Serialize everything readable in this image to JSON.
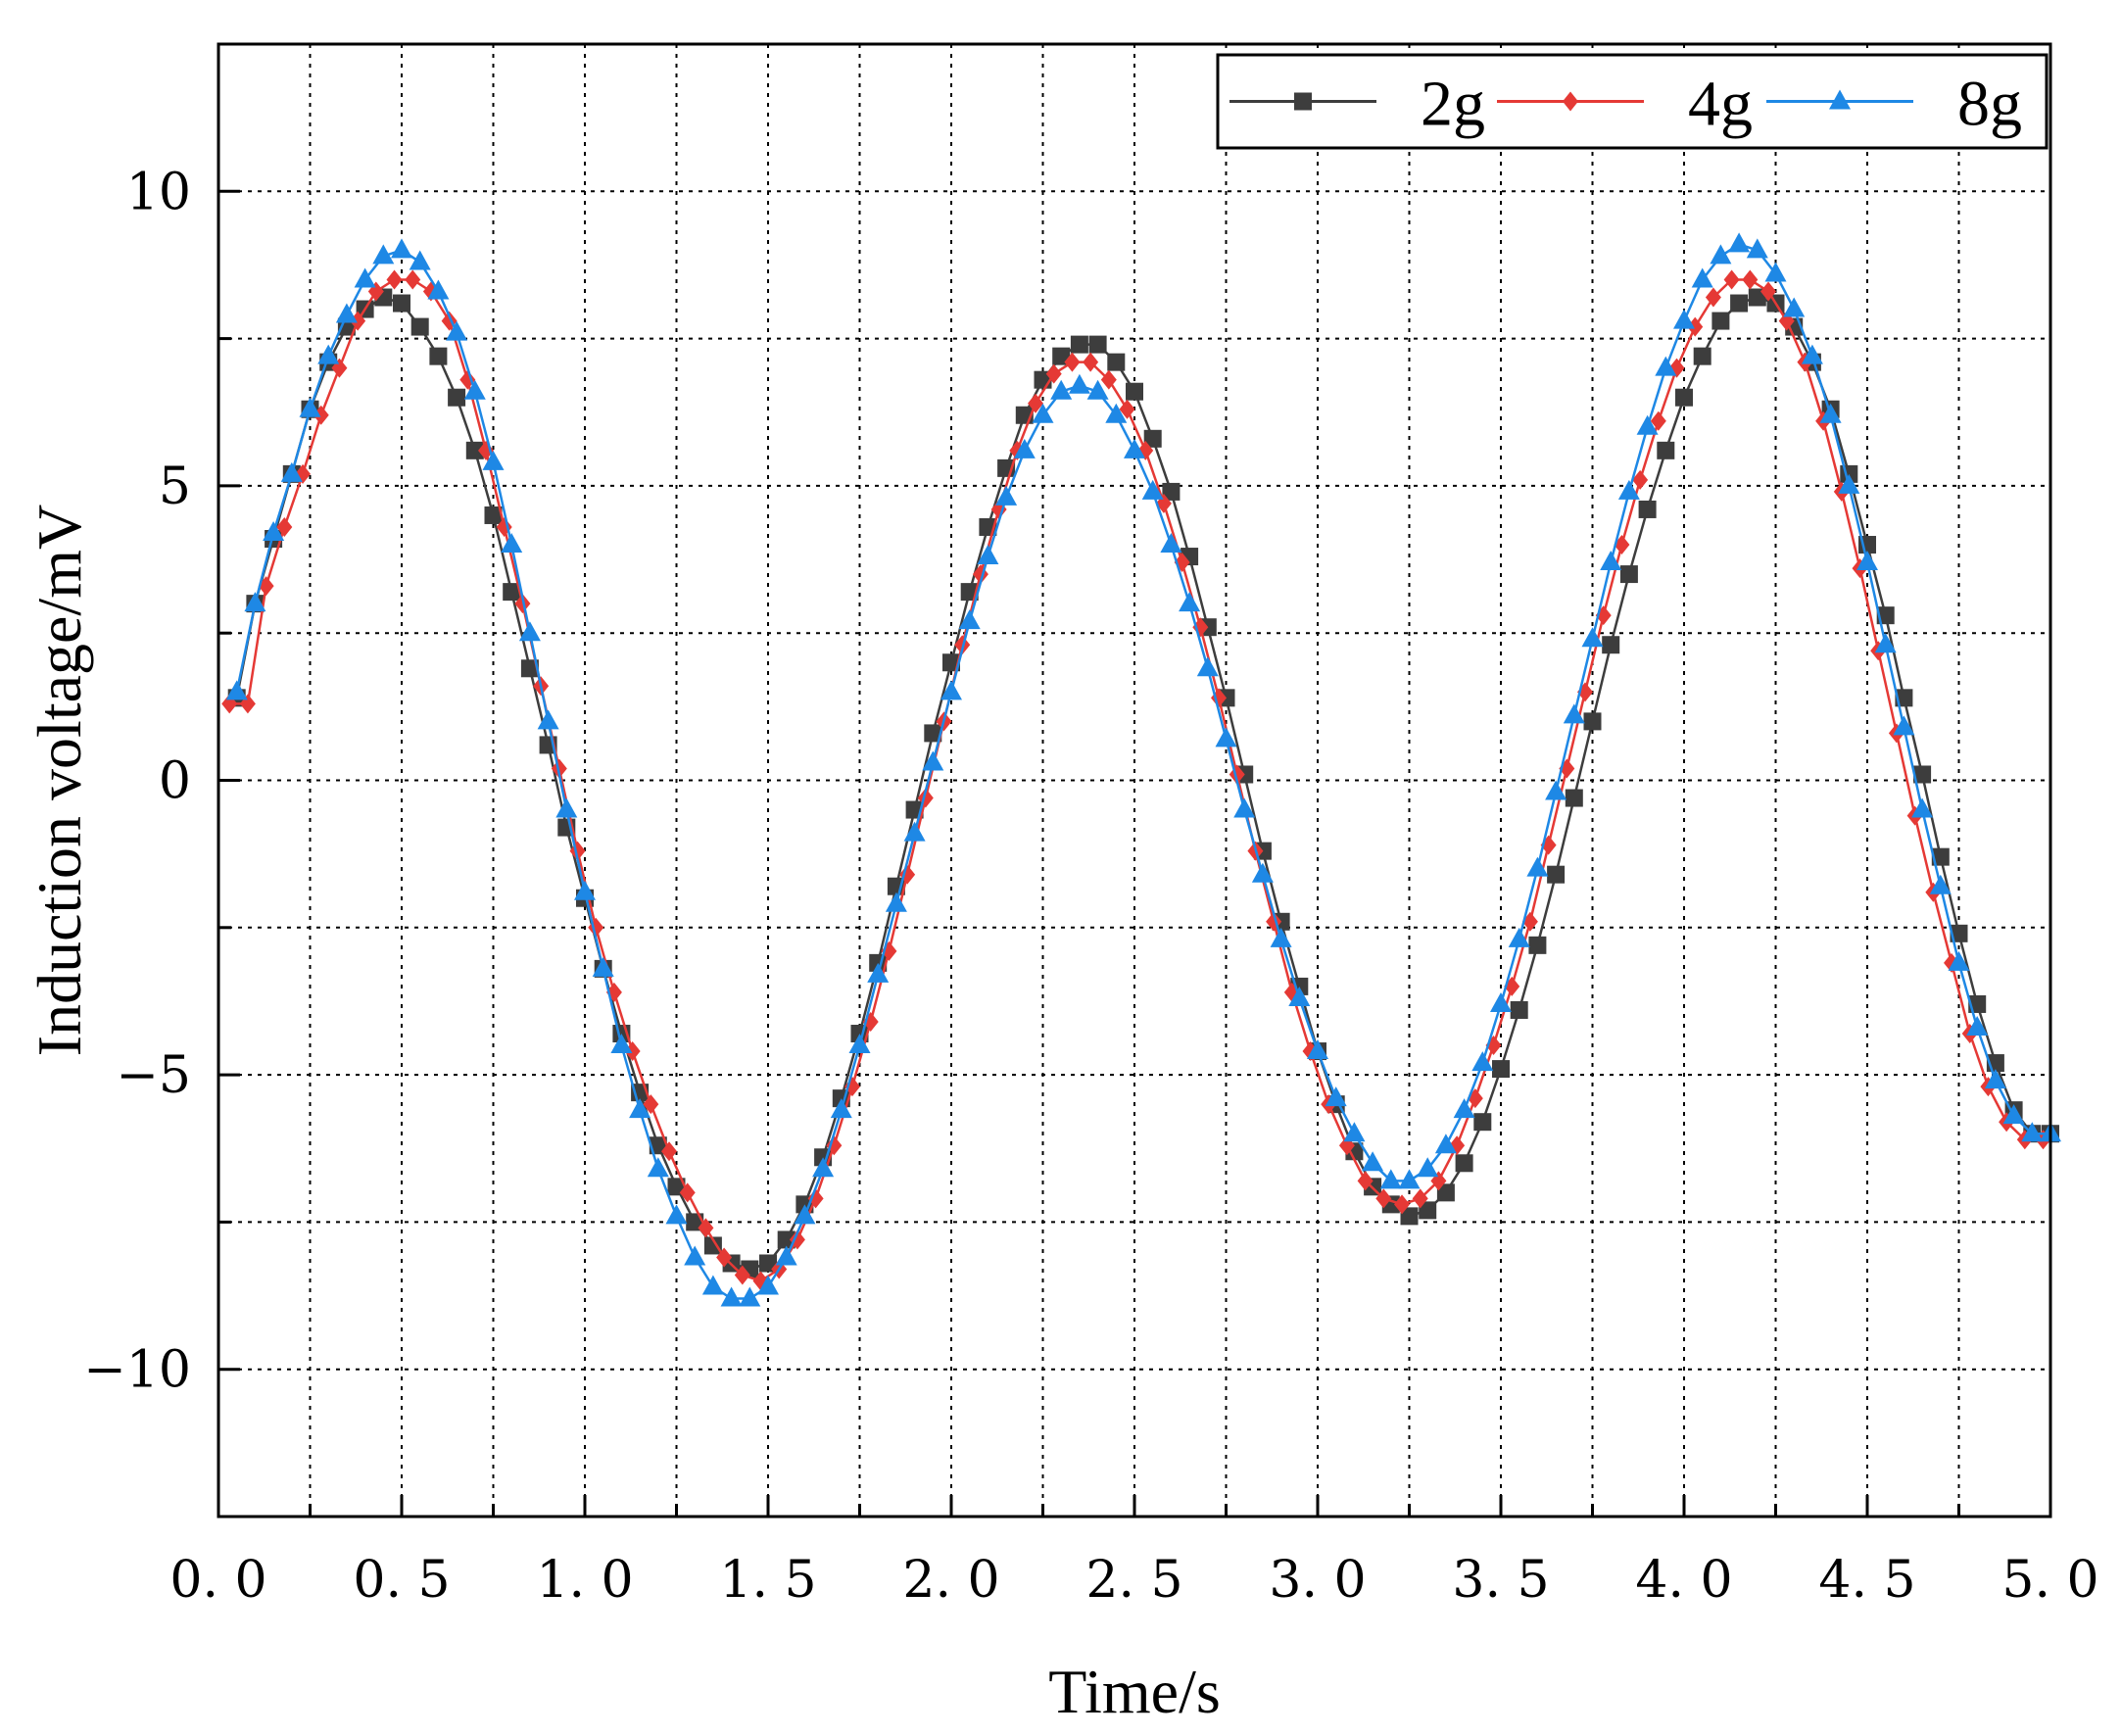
{
  "chart_data": {
    "type": "line",
    "title": "",
    "xlabel": "Time/s",
    "ylabel": "Induction voltage/mV",
    "xlim": [
      0,
      5
    ],
    "ylim": [
      -12.5,
      12.5
    ],
    "xticks": [
      0,
      0.5,
      1,
      1.5,
      2,
      2.5,
      3,
      3.5,
      4,
      4.5,
      5
    ],
    "xtick_labels": [
      "0. 0",
      "0. 5",
      "1. 0",
      "1. 5",
      "2. 0",
      "2. 5",
      "3. 0",
      "3. 5",
      "4. 0",
      "4. 5",
      "5. 0"
    ],
    "yticks": [
      -10,
      -5,
      0,
      5,
      10
    ],
    "ytick_labels": [
      "−10",
      "−5",
      "0",
      "5",
      "10"
    ],
    "grid": true,
    "legend_position": "top-right",
    "series": [
      {
        "name": "2g",
        "color": "#3d3d3d",
        "marker": "square",
        "x": [
          0.05,
          0.1,
          0.15,
          0.2,
          0.25,
          0.3,
          0.35,
          0.4,
          0.45,
          0.5,
          0.55,
          0.6,
          0.65,
          0.7,
          0.75,
          0.8,
          0.85,
          0.9,
          0.95,
          1.0,
          1.05,
          1.1,
          1.15,
          1.2,
          1.25,
          1.3,
          1.35,
          1.4,
          1.45,
          1.5,
          1.55,
          1.6,
          1.65,
          1.7,
          1.75,
          1.8,
          1.85,
          1.9,
          1.95,
          2.0,
          2.05,
          2.1,
          2.15,
          2.2,
          2.25,
          2.3,
          2.35,
          2.4,
          2.45,
          2.5,
          2.55,
          2.6,
          2.65,
          2.7,
          2.75,
          2.8,
          2.85,
          2.9,
          2.95,
          3.0,
          3.05,
          3.1,
          3.15,
          3.2,
          3.25,
          3.3,
          3.35,
          3.4,
          3.45,
          3.5,
          3.55,
          3.6,
          3.65,
          3.7,
          3.75,
          3.8,
          3.85,
          3.9,
          3.95,
          4.0,
          4.05,
          4.1,
          4.15,
          4.2,
          4.25,
          4.3,
          4.35,
          4.4,
          4.45,
          4.5,
          4.55,
          4.6,
          4.65,
          4.7,
          4.75,
          4.8,
          4.85,
          4.9,
          4.95,
          5.0
        ],
        "values": [
          1.4,
          3.0,
          4.1,
          5.2,
          6.3,
          7.1,
          7.7,
          8.0,
          8.2,
          8.1,
          7.7,
          7.2,
          6.5,
          5.6,
          4.5,
          3.2,
          1.9,
          0.6,
          -0.8,
          -2.0,
          -3.2,
          -4.3,
          -5.3,
          -6.2,
          -6.9,
          -7.5,
          -7.9,
          -8.2,
          -8.3,
          -8.2,
          -7.8,
          -7.2,
          -6.4,
          -5.4,
          -4.3,
          -3.1,
          -1.8,
          -0.5,
          0.8,
          2.0,
          3.2,
          4.3,
          5.3,
          6.2,
          6.8,
          7.2,
          7.4,
          7.4,
          7.1,
          6.6,
          5.8,
          4.9,
          3.8,
          2.6,
          1.4,
          0.1,
          -1.2,
          -2.4,
          -3.5,
          -4.6,
          -5.5,
          -6.3,
          -6.9,
          -7.2,
          -7.4,
          -7.3,
          -7.0,
          -6.5,
          -5.8,
          -4.9,
          -3.9,
          -2.8,
          -1.6,
          -0.3,
          1.0,
          2.3,
          3.5,
          4.6,
          5.6,
          6.5,
          7.2,
          7.8,
          8.1,
          8.2,
          8.1,
          7.7,
          7.1,
          6.3,
          5.2,
          4.0,
          2.8,
          1.4,
          0.1,
          -1.3,
          -2.6,
          -3.8,
          -4.8,
          -5.6,
          -6.0,
          -6.0
        ]
      },
      {
        "name": "4g",
        "color": "#e53935",
        "marker": "diamond",
        "x": [
          0.03,
          0.08,
          0.13,
          0.18,
          0.23,
          0.28,
          0.33,
          0.38,
          0.43,
          0.48,
          0.53,
          0.58,
          0.63,
          0.68,
          0.73,
          0.78,
          0.83,
          0.88,
          0.93,
          0.98,
          1.03,
          1.08,
          1.13,
          1.18,
          1.23,
          1.28,
          1.33,
          1.38,
          1.43,
          1.48,
          1.53,
          1.58,
          1.63,
          1.68,
          1.73,
          1.78,
          1.83,
          1.88,
          1.93,
          1.98,
          2.03,
          2.08,
          2.13,
          2.18,
          2.23,
          2.28,
          2.33,
          2.38,
          2.43,
          2.48,
          2.53,
          2.58,
          2.63,
          2.68,
          2.73,
          2.78,
          2.83,
          2.88,
          2.93,
          2.98,
          3.03,
          3.08,
          3.13,
          3.18,
          3.23,
          3.28,
          3.33,
          3.38,
          3.43,
          3.48,
          3.53,
          3.58,
          3.63,
          3.68,
          3.73,
          3.78,
          3.83,
          3.88,
          3.93,
          3.98,
          4.03,
          4.08,
          4.13,
          4.18,
          4.23,
          4.28,
          4.33,
          4.38,
          4.43,
          4.48,
          4.53,
          4.58,
          4.63,
          4.68,
          4.73,
          4.78,
          4.83,
          4.88,
          4.93,
          4.98
        ],
        "values": [
          1.3,
          1.3,
          3.3,
          4.3,
          5.2,
          6.2,
          7.0,
          7.8,
          8.3,
          8.5,
          8.5,
          8.3,
          7.8,
          6.8,
          5.6,
          4.3,
          3.0,
          1.6,
          0.2,
          -1.2,
          -2.5,
          -3.6,
          -4.6,
          -5.5,
          -6.3,
          -7.0,
          -7.6,
          -8.1,
          -8.4,
          -8.5,
          -8.3,
          -7.8,
          -7.1,
          -6.2,
          -5.2,
          -4.1,
          -2.9,
          -1.6,
          -0.3,
          1.0,
          2.3,
          3.5,
          4.6,
          5.6,
          6.4,
          6.9,
          7.1,
          7.1,
          6.8,
          6.3,
          5.6,
          4.7,
          3.7,
          2.6,
          1.4,
          0.1,
          -1.2,
          -2.4,
          -3.6,
          -4.6,
          -5.5,
          -6.2,
          -6.8,
          -7.1,
          -7.2,
          -7.1,
          -6.8,
          -6.2,
          -5.4,
          -4.5,
          -3.5,
          -2.4,
          -1.1,
          0.2,
          1.5,
          2.8,
          4.0,
          5.1,
          6.1,
          7.0,
          7.7,
          8.2,
          8.5,
          8.5,
          8.3,
          7.8,
          7.1,
          6.1,
          4.9,
          3.6,
          2.2,
          0.8,
          -0.6,
          -1.9,
          -3.1,
          -4.3,
          -5.2,
          -5.8,
          -6.1,
          -6.1
        ]
      },
      {
        "name": "8g",
        "color": "#1e88e5",
        "marker": "triangle",
        "x": [
          0.05,
          0.1,
          0.15,
          0.2,
          0.25,
          0.3,
          0.35,
          0.4,
          0.45,
          0.5,
          0.55,
          0.6,
          0.65,
          0.7,
          0.75,
          0.8,
          0.85,
          0.9,
          0.95,
          1.0,
          1.05,
          1.1,
          1.15,
          1.2,
          1.25,
          1.3,
          1.35,
          1.4,
          1.45,
          1.5,
          1.55,
          1.6,
          1.65,
          1.7,
          1.75,
          1.8,
          1.85,
          1.9,
          1.95,
          2.0,
          2.05,
          2.1,
          2.15,
          2.2,
          2.25,
          2.3,
          2.35,
          2.4,
          2.45,
          2.5,
          2.55,
          2.6,
          2.65,
          2.7,
          2.75,
          2.8,
          2.85,
          2.9,
          2.95,
          3.0,
          3.05,
          3.1,
          3.15,
          3.2,
          3.25,
          3.3,
          3.35,
          3.4,
          3.45,
          3.5,
          3.55,
          3.6,
          3.65,
          3.7,
          3.75,
          3.8,
          3.85,
          3.9,
          3.95,
          4.0,
          4.05,
          4.1,
          4.15,
          4.2,
          4.25,
          4.3,
          4.35,
          4.4,
          4.45,
          4.5,
          4.55,
          4.6,
          4.65,
          4.7,
          4.75,
          4.8,
          4.85,
          4.9,
          4.95,
          5.0
        ],
        "values": [
          1.5,
          3.0,
          4.2,
          5.2,
          6.3,
          7.2,
          7.9,
          8.5,
          8.9,
          9.0,
          8.8,
          8.3,
          7.6,
          6.6,
          5.4,
          4.0,
          2.5,
          1.0,
          -0.5,
          -1.9,
          -3.2,
          -4.5,
          -5.6,
          -6.6,
          -7.4,
          -8.1,
          -8.6,
          -8.8,
          -8.8,
          -8.6,
          -8.1,
          -7.4,
          -6.6,
          -5.6,
          -4.5,
          -3.3,
          -2.1,
          -0.9,
          0.3,
          1.5,
          2.7,
          3.8,
          4.8,
          5.6,
          6.2,
          6.6,
          6.7,
          6.6,
          6.2,
          5.6,
          4.9,
          4.0,
          3.0,
          1.9,
          0.7,
          -0.5,
          -1.6,
          -2.7,
          -3.7,
          -4.6,
          -5.4,
          -6.0,
          -6.5,
          -6.8,
          -6.8,
          -6.6,
          -6.2,
          -5.6,
          -4.8,
          -3.8,
          -2.7,
          -1.5,
          -0.2,
          1.1,
          2.4,
          3.7,
          4.9,
          6.0,
          7.0,
          7.8,
          8.5,
          8.9,
          9.1,
          9.0,
          8.6,
          8.0,
          7.2,
          6.2,
          5.0,
          3.7,
          2.3,
          0.9,
          -0.5,
          -1.8,
          -3.1,
          -4.2,
          -5.1,
          -5.7,
          -6.0,
          -6.0
        ]
      }
    ]
  }
}
